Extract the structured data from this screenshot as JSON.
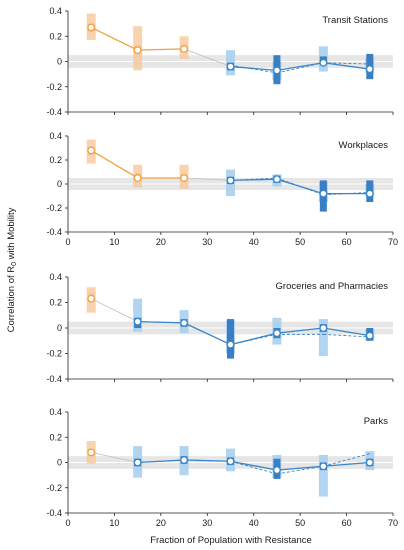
{
  "figure": {
    "ylabel": "Correlation of R",
    "ylabel_sub": "0",
    "ylabel_tail": " with Mobility",
    "xlabel": "Fraction of Population with Resistance"
  },
  "colors": {
    "orange": "#f0a040",
    "orange_light": "#f7c89a",
    "blue": "#3a86c8",
    "blue_dark": "#3a7fc4",
    "blue_light": "#a8cfee",
    "band": "#e6e6e6",
    "connector": "#bdbdbd"
  },
  "chart_data": [
    {
      "type": "line",
      "title": "Transit Stations",
      "x_ticks": [
        0,
        10,
        20,
        30,
        40,
        50,
        60,
        70
      ],
      "show_x_ticks": false,
      "ylim": [
        -0.4,
        0.4
      ],
      "y_ticks": [
        "0.4",
        "0.2",
        "0",
        "-0.2",
        "-0.4"
      ],
      "y_tick_values": [
        0.4,
        0.2,
        0,
        -0.2,
        -0.4
      ],
      "xlim": [
        0,
        70
      ],
      "band": [
        -0.05,
        0.05
      ],
      "points": [
        {
          "x": 5,
          "y": 0.27,
          "dash": null,
          "color": "orange",
          "light": [
            0.17,
            0.38
          ],
          "dark": [
            0.23,
            0.3
          ]
        },
        {
          "x": 15,
          "y": 0.09,
          "dash": null,
          "color": "orange",
          "light": [
            -0.07,
            0.28
          ],
          "dark": [
            0.05,
            0.13
          ]
        },
        {
          "x": 25,
          "y": 0.1,
          "dash": null,
          "color": "orange",
          "light": [
            0.02,
            0.2
          ],
          "dark": [
            0.07,
            0.13
          ]
        },
        {
          "x": 35,
          "y": -0.04,
          "dash": -0.03,
          "color": "blue",
          "light": [
            -0.11,
            0.09
          ],
          "dark": [
            -0.07,
            -0.01
          ]
        },
        {
          "x": 45,
          "y": -0.07,
          "dash": -0.09,
          "color": "blue",
          "light": [
            -0.15,
            0.0
          ],
          "dark": [
            -0.18,
            0.05
          ]
        },
        {
          "x": 55,
          "y": -0.01,
          "dash": -0.01,
          "color": "blue",
          "light": [
            -0.08,
            0.12
          ],
          "dark": [
            -0.03,
            0.04
          ]
        },
        {
          "x": 65,
          "y": -0.06,
          "dash": -0.02,
          "color": "blue",
          "light": [
            -0.09,
            0.03
          ],
          "dark": [
            -0.14,
            0.06
          ]
        }
      ]
    },
    {
      "type": "line",
      "title": "Workplaces",
      "x_ticks": [
        0,
        10,
        20,
        30,
        40,
        50,
        60,
        70
      ],
      "show_x_ticks": true,
      "ylim": [
        -0.4,
        0.4
      ],
      "y_ticks": [
        "0.4",
        "0.2",
        "0",
        "-0.2",
        "-0.4"
      ],
      "y_tick_values": [
        0.4,
        0.2,
        0,
        -0.2,
        -0.4
      ],
      "xlim": [
        0,
        70
      ],
      "band": [
        -0.05,
        0.05
      ],
      "points": [
        {
          "x": 5,
          "y": 0.28,
          "dash": null,
          "color": "orange",
          "light": [
            0.17,
            0.37
          ],
          "dark": [
            0.24,
            0.31
          ]
        },
        {
          "x": 15,
          "y": 0.05,
          "dash": null,
          "color": "orange",
          "light": [
            -0.03,
            0.16
          ],
          "dark": [
            0.03,
            0.09
          ]
        },
        {
          "x": 25,
          "y": 0.05,
          "dash": null,
          "color": "orange",
          "light": [
            -0.04,
            0.16
          ],
          "dark": [
            0.03,
            0.08
          ]
        },
        {
          "x": 35,
          "y": 0.03,
          "dash": 0.03,
          "color": "blue",
          "light": [
            -0.1,
            0.12
          ],
          "dark": [
            0.0,
            0.06
          ]
        },
        {
          "x": 45,
          "y": 0.04,
          "dash": 0.05,
          "color": "blue",
          "light": [
            -0.02,
            0.08
          ],
          "dark": [
            0.01,
            0.07
          ]
        },
        {
          "x": 55,
          "y": -0.08,
          "dash": -0.09,
          "color": "blue",
          "light": [
            -0.15,
            0.02
          ],
          "dark": [
            -0.23,
            0.03
          ]
        },
        {
          "x": 65,
          "y": -0.08,
          "dash": -0.07,
          "color": "blue",
          "light": [
            -0.1,
            0.0
          ],
          "dark": [
            -0.15,
            0.03
          ]
        }
      ]
    },
    {
      "type": "line",
      "title": "Groceries and Pharmacies",
      "x_ticks": [
        0,
        10,
        20,
        30,
        40,
        50,
        60,
        70
      ],
      "show_x_ticks": false,
      "ylim": [
        -0.4,
        0.4
      ],
      "y_ticks": [
        "0.4",
        "0.2",
        "0",
        "-0.2",
        "-0.4"
      ],
      "y_tick_values": [
        0.4,
        0.2,
        0,
        -0.2,
        -0.4
      ],
      "xlim": [
        0,
        70
      ],
      "band": [
        -0.05,
        0.05
      ],
      "points": [
        {
          "x": 5,
          "y": 0.23,
          "dash": null,
          "color": "orange",
          "light": [
            0.12,
            0.32
          ],
          "dark": [
            0.2,
            0.28
          ]
        },
        {
          "x": 15,
          "y": 0.05,
          "dash": 0.05,
          "color": "blue",
          "light": [
            -0.03,
            0.23
          ],
          "dark": [
            0.0,
            0.08
          ]
        },
        {
          "x": 25,
          "y": 0.04,
          "dash": 0.04,
          "color": "blue",
          "light": [
            -0.04,
            0.14
          ],
          "dark": [
            0.01,
            0.07
          ]
        },
        {
          "x": 35,
          "y": -0.13,
          "dash": -0.13,
          "color": "blue",
          "light": [
            -0.2,
            0.06
          ],
          "dark": [
            -0.24,
            0.07
          ]
        },
        {
          "x": 45,
          "y": -0.04,
          "dash": -0.05,
          "color": "blue",
          "light": [
            -0.13,
            0.08
          ],
          "dark": [
            -0.08,
            0.0
          ]
        },
        {
          "x": 55,
          "y": 0.0,
          "dash": -0.05,
          "color": "blue",
          "light": [
            -0.22,
            0.07
          ],
          "dark": [
            -0.03,
            0.03
          ]
        },
        {
          "x": 65,
          "y": -0.06,
          "dash": -0.07,
          "color": "blue",
          "light": [
            -0.1,
            -0.01
          ],
          "dark": [
            -0.1,
            0.0
          ]
        }
      ]
    },
    {
      "type": "line",
      "title": "Parks",
      "x_ticks": [
        0,
        10,
        20,
        30,
        40,
        50,
        60,
        70
      ],
      "show_x_ticks": true,
      "ylim": [
        -0.4,
        0.4
      ],
      "y_ticks": [
        "0.4",
        "0.2",
        "0",
        "-0.2",
        "-0.4"
      ],
      "y_tick_values": [
        0.4,
        0.2,
        0,
        -0.2,
        -0.4
      ],
      "xlim": [
        0,
        70
      ],
      "band": [
        -0.05,
        0.05
      ],
      "points": [
        {
          "x": 5,
          "y": 0.08,
          "dash": null,
          "color": "orange",
          "light": [
            -0.01,
            0.17
          ],
          "dark": [
            0.05,
            0.11
          ]
        },
        {
          "x": 15,
          "y": 0.0,
          "dash": 0.0,
          "color": "blue",
          "light": [
            -0.12,
            0.13
          ],
          "dark": [
            -0.03,
            0.03
          ]
        },
        {
          "x": 25,
          "y": 0.02,
          "dash": 0.02,
          "color": "blue",
          "light": [
            -0.1,
            0.13
          ],
          "dark": [
            -0.01,
            0.05
          ]
        },
        {
          "x": 35,
          "y": 0.01,
          "dash": 0.01,
          "color": "blue",
          "light": [
            -0.07,
            0.11
          ],
          "dark": [
            -0.02,
            0.04
          ]
        },
        {
          "x": 45,
          "y": -0.06,
          "dash": -0.09,
          "color": "blue",
          "light": [
            -0.12,
            0.06
          ],
          "dark": [
            -0.13,
            0.03
          ]
        },
        {
          "x": 55,
          "y": -0.03,
          "dash": -0.03,
          "color": "blue",
          "light": [
            -0.27,
            0.06
          ],
          "dark": [
            -0.06,
            0.0
          ]
        },
        {
          "x": 65,
          "y": 0.0,
          "dash": 0.07,
          "color": "blue",
          "light": [
            -0.06,
            0.09
          ],
          "dark": [
            -0.03,
            0.03
          ]
        }
      ]
    }
  ]
}
